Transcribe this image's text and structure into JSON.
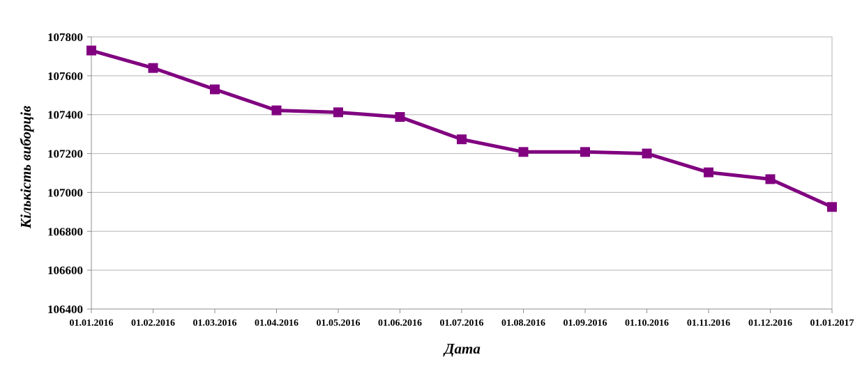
{
  "chart_data": {
    "type": "line",
    "xlabel": "Дата",
    "ylabel": "Кількість виборців",
    "ylim": [
      106400,
      107800
    ],
    "ytick_step": 200,
    "grid": true,
    "legend": "none",
    "categories": [
      "01.01.2016",
      "01.02.2016",
      "01.03.2016",
      "01.04.2016",
      "01.05.2016",
      "01.06.2016",
      "01.07.2016",
      "01.08.2016",
      "01.09.2016",
      "01.10.2016",
      "01.11.2016",
      "01.12.2016",
      "01.01.2017"
    ],
    "series": [
      {
        "color": "#800080",
        "values": [
          107730,
          107640,
          107530,
          107422,
          107412,
          107388,
          107273,
          107208,
          107208,
          107200,
          107103,
          107068,
          106925
        ]
      }
    ]
  }
}
